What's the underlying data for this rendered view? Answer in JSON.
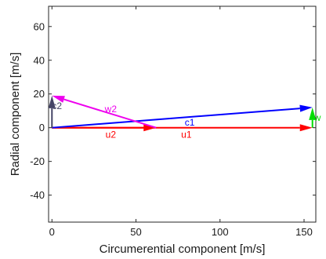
{
  "chart_data": {
    "type": "vector-diagram",
    "xlabel": "Circumerential component [m/s]",
    "ylabel": "Radial component [m/s]",
    "xlim": [
      -2,
      157
    ],
    "ylim": [
      -56,
      72
    ],
    "xticks": [
      0,
      50,
      100,
      150
    ],
    "yticks": [
      -40,
      -20,
      0,
      20,
      40,
      60
    ],
    "grid": false,
    "vectors": [
      {
        "name": "u1",
        "from": [
          0,
          0
        ],
        "to": [
          155,
          0
        ],
        "color": "#ff0000",
        "label_at": [
          80,
          -4
        ]
      },
      {
        "name": "u2",
        "from": [
          0,
          0
        ],
        "to": [
          62,
          0
        ],
        "color": "#ff0000",
        "label_at": [
          35,
          -4
        ]
      },
      {
        "name": "c1",
        "from": [
          0,
          0
        ],
        "to": [
          155,
          12
        ],
        "color": "#0000ff",
        "label_at": [
          82,
          3
        ]
      },
      {
        "name": "w",
        "from": [
          155,
          0
        ],
        "to": [
          155,
          12
        ],
        "color": "#00dd00",
        "label_at": [
          158,
          6
        ]
      },
      {
        "name": "w2",
        "from": [
          62,
          0
        ],
        "to": [
          0,
          19
        ],
        "color": "#ee00ee",
        "label_at": [
          35,
          11
        ]
      },
      {
        "name": "c2",
        "from": [
          0,
          0
        ],
        "to": [
          0,
          19
        ],
        "color": "#444466",
        "label_at": [
          3,
          13
        ]
      }
    ]
  }
}
